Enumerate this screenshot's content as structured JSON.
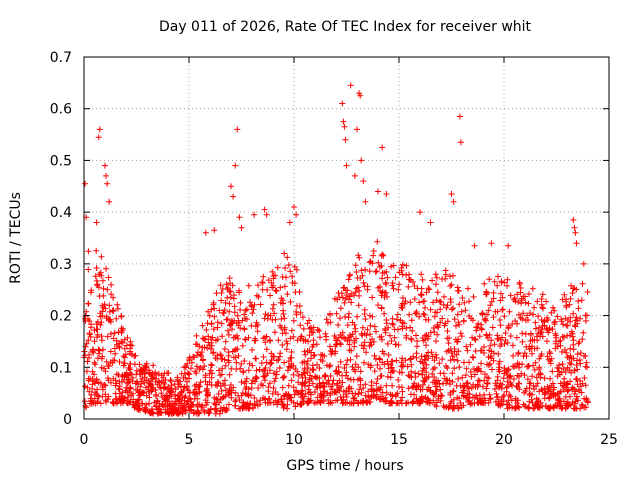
{
  "chart_data": {
    "type": "scatter",
    "title": "Day 011 of 2026, Rate Of TEC Index for receiver whit",
    "xlabel": "GPS time / hours",
    "ylabel": "ROTI / TECUs",
    "xlim": [
      0,
      25
    ],
    "ylim": [
      0,
      0.7
    ],
    "xticks": [
      0,
      5,
      10,
      15,
      20,
      25
    ],
    "yticks": [
      0,
      0.1,
      0.2,
      0.3,
      0.4,
      0.5,
      0.6,
      0.7
    ],
    "grid": true,
    "marker": "plus",
    "color": "#ff0000",
    "envelope": {
      "x": [
        0,
        0.5,
        1,
        1.5,
        2,
        2.5,
        3,
        3.5,
        4,
        4.5,
        5,
        5.5,
        6,
        6.5,
        7,
        7.5,
        8,
        8.5,
        9,
        9.5,
        10,
        10.5,
        11,
        11.5,
        12,
        12.5,
        13,
        13.5,
        14,
        14.5,
        15,
        15.5,
        16,
        16.5,
        17,
        17.5,
        18,
        18.5,
        19,
        19.5,
        20,
        20.5,
        21,
        21.5,
        22,
        22.5,
        23,
        23.5,
        24
      ],
      "y_low": [
        0.02,
        0.03,
        0.03,
        0.03,
        0.03,
        0.02,
        0.01,
        0.01,
        0.01,
        0.01,
        0.01,
        0.01,
        0.01,
        0.01,
        0.02,
        0.02,
        0.02,
        0.03,
        0.03,
        0.02,
        0.02,
        0.03,
        0.03,
        0.03,
        0.03,
        0.03,
        0.03,
        0.03,
        0.04,
        0.03,
        0.03,
        0.03,
        0.03,
        0.03,
        0.02,
        0.02,
        0.02,
        0.03,
        0.03,
        0.03,
        0.02,
        0.02,
        0.02,
        0.02,
        0.02,
        0.02,
        0.02,
        0.02,
        0.02
      ],
      "y_high": [
        0.36,
        0.34,
        0.3,
        0.24,
        0.18,
        0.12,
        0.11,
        0.1,
        0.09,
        0.08,
        0.12,
        0.18,
        0.22,
        0.26,
        0.28,
        0.26,
        0.27,
        0.28,
        0.3,
        0.32,
        0.33,
        0.2,
        0.18,
        0.2,
        0.24,
        0.26,
        0.32,
        0.3,
        0.36,
        0.3,
        0.3,
        0.3,
        0.28,
        0.28,
        0.3,
        0.28,
        0.26,
        0.25,
        0.26,
        0.28,
        0.28,
        0.27,
        0.26,
        0.25,
        0.24,
        0.23,
        0.25,
        0.28,
        0.27
      ]
    },
    "outliers": [
      {
        "x": 0.05,
        "y": 0.455
      },
      {
        "x": 0.1,
        "y": 0.39
      },
      {
        "x": 0.6,
        "y": 0.38
      },
      {
        "x": 0.7,
        "y": 0.545
      },
      {
        "x": 0.75,
        "y": 0.56
      },
      {
        "x": 1.0,
        "y": 0.49
      },
      {
        "x": 1.05,
        "y": 0.47
      },
      {
        "x": 1.1,
        "y": 0.455
      },
      {
        "x": 1.2,
        "y": 0.42
      },
      {
        "x": 5.8,
        "y": 0.36
      },
      {
        "x": 6.2,
        "y": 0.365
      },
      {
        "x": 7.0,
        "y": 0.45
      },
      {
        "x": 7.1,
        "y": 0.43
      },
      {
        "x": 7.2,
        "y": 0.49
      },
      {
        "x": 7.3,
        "y": 0.56
      },
      {
        "x": 7.4,
        "y": 0.39
      },
      {
        "x": 7.5,
        "y": 0.37
      },
      {
        "x": 8.1,
        "y": 0.395
      },
      {
        "x": 8.6,
        "y": 0.405
      },
      {
        "x": 8.7,
        "y": 0.395
      },
      {
        "x": 9.8,
        "y": 0.38
      },
      {
        "x": 10.0,
        "y": 0.41
      },
      {
        "x": 10.1,
        "y": 0.395
      },
      {
        "x": 12.3,
        "y": 0.61
      },
      {
        "x": 12.35,
        "y": 0.575
      },
      {
        "x": 12.4,
        "y": 0.565
      },
      {
        "x": 12.45,
        "y": 0.54
      },
      {
        "x": 12.5,
        "y": 0.49
      },
      {
        "x": 12.7,
        "y": 0.645
      },
      {
        "x": 12.9,
        "y": 0.47
      },
      {
        "x": 13.0,
        "y": 0.56
      },
      {
        "x": 13.1,
        "y": 0.63
      },
      {
        "x": 13.15,
        "y": 0.625
      },
      {
        "x": 13.2,
        "y": 0.5
      },
      {
        "x": 13.3,
        "y": 0.46
      },
      {
        "x": 13.4,
        "y": 0.42
      },
      {
        "x": 14.0,
        "y": 0.44
      },
      {
        "x": 14.2,
        "y": 0.525
      },
      {
        "x": 14.4,
        "y": 0.435
      },
      {
        "x": 16.0,
        "y": 0.4
      },
      {
        "x": 16.5,
        "y": 0.38
      },
      {
        "x": 17.5,
        "y": 0.435
      },
      {
        "x": 17.6,
        "y": 0.42
      },
      {
        "x": 17.9,
        "y": 0.585
      },
      {
        "x": 17.95,
        "y": 0.535
      },
      {
        "x": 18.6,
        "y": 0.335
      },
      {
        "x": 19.4,
        "y": 0.34
      },
      {
        "x": 20.2,
        "y": 0.335
      },
      {
        "x": 23.3,
        "y": 0.385
      },
      {
        "x": 23.35,
        "y": 0.37
      },
      {
        "x": 23.4,
        "y": 0.36
      },
      {
        "x": 23.45,
        "y": 0.34
      },
      {
        "x": 23.8,
        "y": 0.3
      }
    ]
  }
}
